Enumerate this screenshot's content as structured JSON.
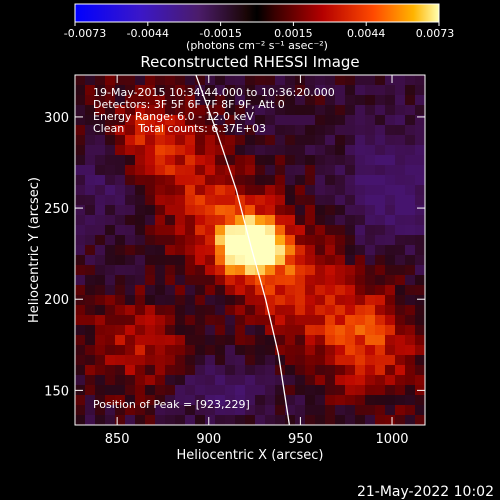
{
  "chart_data": {
    "type": "heatmap",
    "title": "Reconstructed RHESSI Image",
    "xlabel": "Heliocentric X (arcsec)",
    "ylabel": "Heliocentric Y (arcsec)",
    "xlim": [
      827,
      1018
    ],
    "ylim": [
      131,
      323
    ],
    "x_ticks": [
      850,
      900,
      950,
      1000
    ],
    "y_ticks": [
      150,
      200,
      250,
      300
    ],
    "colorbar": {
      "ticks": [
        "-0.0073",
        "-0.0044",
        "-0.0015",
        "0.0015",
        "0.0044",
        "0.0073"
      ],
      "unit_label": "(photons cm⁻² s⁻¹ asec⁻²)",
      "min": -0.0073,
      "max": 0.0073
    },
    "annotations": [
      "19-May-2015 10:34:44.000 to 10:36:20.000",
      "Detectors: 3F 5F 6F 7F 8F 9F, Att 0",
      "Energy Range: 6.0 - 12.0 keV",
      "Clean    Total counts: 6.37E+03"
    ],
    "peak_label": "Position of Peak = [923,229]",
    "peak": [
      923,
      229
    ],
    "limb_curve": [
      [
        893,
        323
      ],
      [
        905,
        290
      ],
      [
        915,
        260
      ],
      [
        923,
        229
      ],
      [
        931,
        200
      ],
      [
        938,
        170
      ],
      [
        944,
        131
      ]
    ]
  },
  "footer": {
    "timestamp": "21-May-2022 10:02"
  }
}
